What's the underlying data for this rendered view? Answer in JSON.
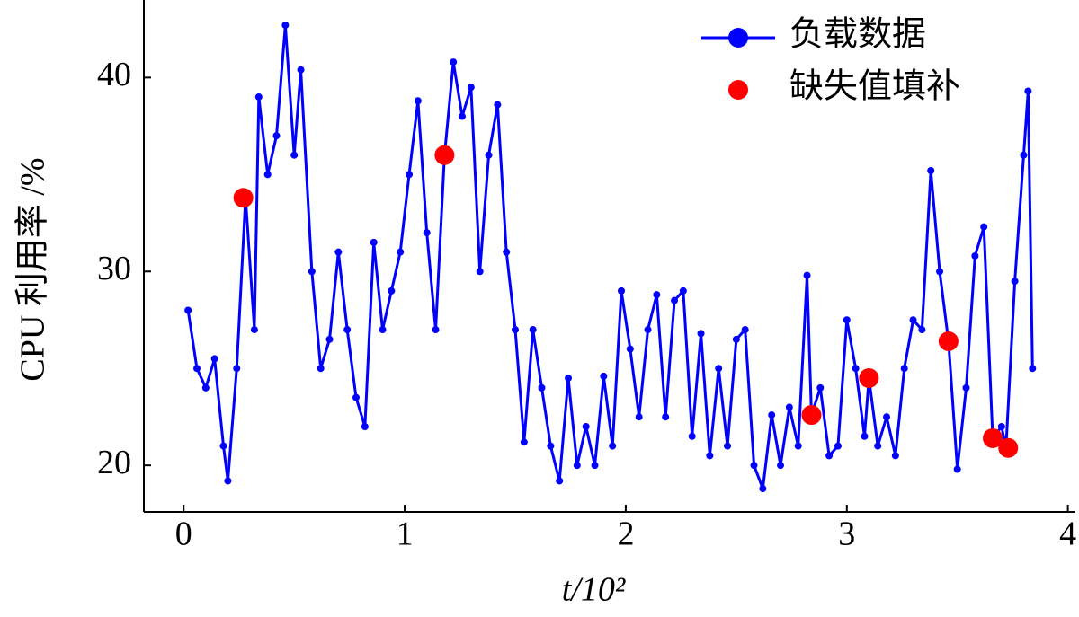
{
  "chart_data": {
    "type": "line",
    "xlabel": "t/10²",
    "ylabel": "CPU 利用率 /%",
    "xlim": [
      -0.18,
      4.03
    ],
    "ylim": [
      17.6,
      44
    ],
    "xticks": [
      0,
      1,
      2,
      3,
      4
    ],
    "yticks": [
      20,
      30,
      40
    ],
    "legend": "upper right",
    "series": [
      {
        "name": "负载数据",
        "color": "#0000ff",
        "line": true,
        "marker_size": 4,
        "x": [
          0.02,
          0.06,
          0.1,
          0.14,
          0.18,
          0.2,
          0.24,
          0.28,
          0.32,
          0.34,
          0.38,
          0.42,
          0.46,
          0.5,
          0.53,
          0.58,
          0.62,
          0.66,
          0.7,
          0.74,
          0.78,
          0.82,
          0.86,
          0.9,
          0.94,
          0.98,
          1.02,
          1.06,
          1.1,
          1.14,
          1.18,
          1.22,
          1.26,
          1.3,
          1.34,
          1.38,
          1.42,
          1.46,
          1.5,
          1.54,
          1.58,
          1.62,
          1.66,
          1.7,
          1.74,
          1.78,
          1.82,
          1.86,
          1.9,
          1.94,
          1.98,
          2.02,
          2.06,
          2.1,
          2.14,
          2.18,
          2.22,
          2.26,
          2.3,
          2.34,
          2.38,
          2.42,
          2.46,
          2.5,
          2.54,
          2.58,
          2.62,
          2.66,
          2.7,
          2.74,
          2.78,
          2.82,
          2.84,
          2.88,
          2.92,
          2.96,
          3.0,
          3.04,
          3.08,
          3.1,
          3.14,
          3.18,
          3.22,
          3.26,
          3.3,
          3.34,
          3.38,
          3.42,
          3.46,
          3.5,
          3.54,
          3.58,
          3.62,
          3.66,
          3.7,
          3.72,
          3.76,
          3.8,
          3.82,
          3.84
        ],
        "values": [
          28,
          25,
          24,
          25.5,
          21,
          19.2,
          25,
          33.8,
          27,
          39,
          35,
          37,
          42.7,
          36,
          40.4,
          30,
          25,
          26.5,
          31,
          27,
          23.5,
          22,
          31.5,
          27,
          29,
          31,
          35,
          38.8,
          32,
          27,
          36,
          40.8,
          38,
          39.5,
          30,
          36,
          38.6,
          31,
          27,
          21.2,
          27,
          24,
          21,
          19.2,
          24.5,
          20,
          22,
          20,
          24.6,
          21,
          29,
          26,
          22.5,
          27,
          28.8,
          22.5,
          28.5,
          29,
          21.5,
          26.8,
          20.5,
          25,
          21,
          26.5,
          27,
          20,
          18.8,
          22.6,
          20,
          23,
          21,
          29.8,
          22.6,
          24,
          20.5,
          21,
          27.5,
          25,
          21.5,
          24.5,
          21,
          22.5,
          20.5,
          25,
          27.5,
          27,
          35.2,
          30,
          26.4,
          19.8,
          24,
          30.8,
          32.3,
          21.4,
          22,
          20.9,
          29.5,
          36,
          39.3,
          25
        ]
      },
      {
        "name": "缺失值填补",
        "color": "#ff0000",
        "line": false,
        "marker_size": 11,
        "x": [
          0.27,
          1.18,
          2.84,
          3.1,
          3.46,
          3.66,
          3.73
        ],
        "values": [
          33.8,
          36,
          22.6,
          24.5,
          26.4,
          21.4,
          20.9
        ]
      }
    ]
  }
}
